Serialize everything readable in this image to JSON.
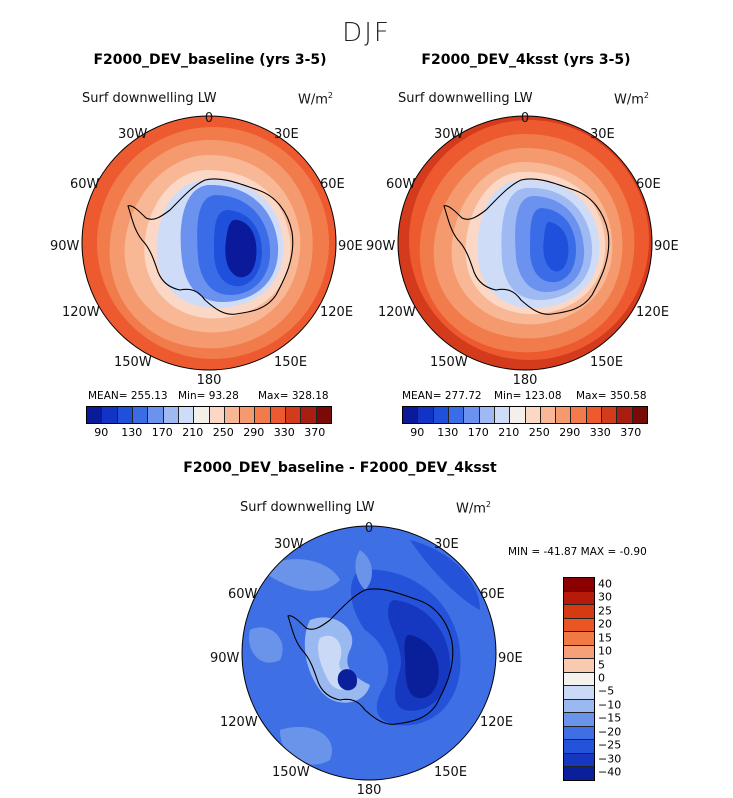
{
  "figure_title": "DJF",
  "panels": [
    {
      "title": "F2000_DEV_baseline (yrs 3-5)",
      "variable": "Surf downwelling LW",
      "units": "W/m",
      "units_exp": "2",
      "stats": {
        "mean": "MEAN= 255.13",
        "min": "Min=  93.28",
        "max": "Max= 328.18"
      },
      "colorbar_ticks": [
        "90",
        "130",
        "170",
        "210",
        "250",
        "290",
        "330",
        "370"
      ]
    },
    {
      "title": "F2000_DEV_4ksst (yrs 3-5)",
      "variable": "Surf downwelling LW",
      "units": "W/m",
      "units_exp": "2",
      "stats": {
        "mean": "MEAN= 277.72",
        "min": "Min= 123.08",
        "max": "Max= 350.58"
      },
      "colorbar_ticks": [
        "90",
        "130",
        "170",
        "210",
        "250",
        "290",
        "330",
        "370"
      ]
    },
    {
      "title": "F2000_DEV_baseline - F2000_DEV_4ksst",
      "variable": "Surf downwelling LW",
      "units": "W/m",
      "units_exp": "2",
      "minmax": "MIN =  -41.87  MAX =   -0.90",
      "colorbar_ticks": [
        "40",
        "30",
        "25",
        "20",
        "15",
        "10",
        "5",
        "0",
        "−5",
        "−10",
        "−15",
        "−20",
        "−25",
        "−30",
        "−40"
      ]
    }
  ],
  "longitude_labels": {
    "lon_0": "0",
    "lon_30e": "30E",
    "lon_60e": "60E",
    "lon_90e": "90E",
    "lon_120e": "120E",
    "lon_150e": "150E",
    "lon_180": "180",
    "lon_150w": "150W",
    "lon_120w": "120W",
    "lon_90w": "90W",
    "lon_60w": "60W",
    "lon_30w": "30W"
  },
  "colors": {
    "abs_scale": [
      "#0a1a9a",
      "#1333c4",
      "#1f50dc",
      "#3a6ce8",
      "#6b92ee",
      "#9fbaf3",
      "#cfdcf8",
      "#f3efe9",
      "#fbd7c6",
      "#f8b896",
      "#f59a6e",
      "#f27b4c",
      "#ee5a30",
      "#d43a1c",
      "#a81e10",
      "#7a0a06"
    ],
    "diff_scale": [
      "#8a0000",
      "#b51a0a",
      "#d63a12",
      "#ea5524",
      "#f17944",
      "#f6a07a",
      "#f9c9b0",
      "#f5f2ee",
      "#c9d9f6",
      "#9ab9f0",
      "#6a94ea",
      "#3f6fe4",
      "#2452d8",
      "#1638c0",
      "#0a209a"
    ]
  }
}
